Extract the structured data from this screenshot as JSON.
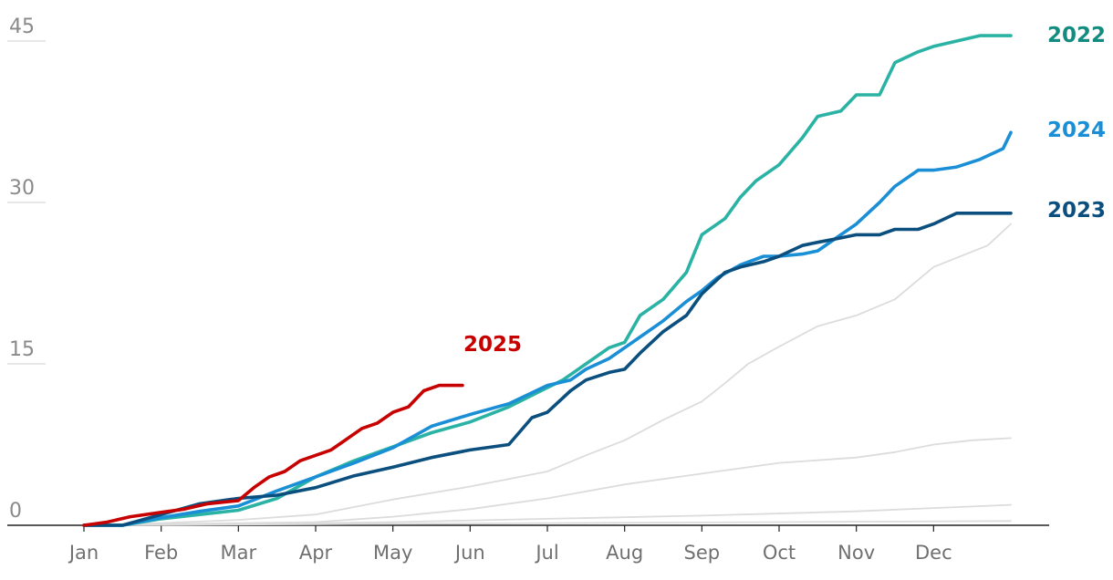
{
  "chart_data": {
    "type": "line",
    "title": "",
    "xlabel": "",
    "ylabel": "",
    "x_ticks": [
      "Jan",
      "Feb",
      "Mar",
      "Apr",
      "May",
      "Jun",
      "Jul",
      "Aug",
      "Sep",
      "Oct",
      "Nov",
      "Dec"
    ],
    "y_ticks": [
      0,
      15,
      30,
      45
    ],
    "xlim_months": [
      1,
      13
    ],
    "ylim": [
      0,
      46
    ],
    "grid": "horizontal",
    "legend": "direct labels at line ends",
    "colors": {
      "2022": "#2ab3a4",
      "2022_label": "#138b7e",
      "2023": "#0b4f7f",
      "2024": "#1a8fd6",
      "2025": "#c70000",
      "other_years": "#dcdcdc"
    },
    "series": [
      {
        "key": "o1",
        "highlight": false,
        "x": [
          1.0,
          2.0,
          3.0,
          4.0,
          5.0,
          5.5,
          6.0,
          7.0,
          7.5,
          8.0,
          8.5,
          9.0,
          9.3,
          9.6,
          10.0,
          10.5,
          11.0,
          11.5,
          12.0,
          12.7,
          13.0
        ],
        "y": [
          0,
          0.2,
          0.5,
          1.0,
          2.4,
          3.0,
          3.6,
          5.0,
          6.5,
          7.9,
          9.8,
          11.5,
          13.2,
          15.0,
          16.6,
          18.5,
          19.5,
          21.0,
          24.0,
          26.0,
          28.0
        ]
      },
      {
        "key": "o2",
        "highlight": false,
        "x": [
          1.0,
          2.0,
          3.0,
          4.0,
          5.0,
          6.0,
          7.0,
          8.0,
          9.0,
          10.0,
          11.0,
          11.5,
          12.0,
          12.5,
          13.0
        ],
        "y": [
          0,
          0.1,
          0.2,
          0.3,
          0.8,
          1.5,
          2.5,
          3.8,
          4.8,
          5.8,
          6.3,
          6.8,
          7.5,
          7.9,
          8.1
        ]
      },
      {
        "key": "o3",
        "highlight": false,
        "x": [
          1.0,
          3.0,
          5.0,
          7.0,
          9.0,
          11.0,
          12.0,
          13.0
        ],
        "y": [
          0,
          0.1,
          0.3,
          0.6,
          0.9,
          1.3,
          1.6,
          1.9
        ]
      },
      {
        "key": "o4",
        "highlight": false,
        "x": [
          1.0,
          4.0,
          7.0,
          10.0,
          13.0
        ],
        "y": [
          0,
          0.1,
          0.2,
          0.3,
          0.4
        ]
      },
      {
        "key": "s2022",
        "name": "2022",
        "highlight": true,
        "x": [
          1.0,
          1.5,
          2.0,
          2.5,
          3.0,
          3.5,
          4.0,
          4.5,
          5.0,
          5.5,
          6.0,
          6.5,
          7.0,
          7.2,
          7.5,
          7.8,
          8.0,
          8.2,
          8.5,
          8.8,
          9.0,
          9.3,
          9.5,
          9.7,
          10.0,
          10.3,
          10.5,
          10.8,
          11.0,
          11.3,
          11.5,
          11.8,
          12.0,
          12.3,
          12.6,
          12.9,
          13.0
        ],
        "y": [
          0,
          0,
          0.6,
          1.0,
          1.4,
          2.5,
          4.5,
          6.0,
          7.3,
          8.6,
          9.6,
          11.0,
          12.8,
          13.5,
          15.0,
          16.5,
          17.0,
          19.5,
          21.0,
          23.5,
          27.0,
          28.5,
          30.5,
          32.0,
          33.5,
          36.0,
          38.0,
          38.5,
          40.0,
          40.0,
          43.0,
          44.0,
          44.5,
          45.0,
          45.5,
          45.5,
          45.5
        ]
      },
      {
        "key": "s2024",
        "name": "2024",
        "highlight": true,
        "x": [
          1.0,
          1.5,
          2.0,
          2.5,
          3.0,
          3.5,
          4.0,
          4.5,
          5.0,
          5.5,
          6.0,
          6.5,
          7.0,
          7.3,
          7.5,
          7.8,
          8.0,
          8.3,
          8.5,
          8.8,
          9.0,
          9.2,
          9.5,
          9.8,
          10.0,
          10.3,
          10.5,
          10.8,
          11.0,
          11.3,
          11.5,
          11.8,
          12.0,
          12.3,
          12.6,
          12.9,
          13.0
        ],
        "y": [
          0,
          0,
          0.7,
          1.3,
          1.8,
          3.2,
          4.5,
          5.8,
          7.2,
          9.2,
          10.3,
          11.3,
          13.0,
          13.5,
          14.5,
          15.5,
          16.5,
          18.0,
          19.0,
          20.8,
          21.8,
          23.0,
          24.2,
          25.0,
          25.0,
          25.2,
          25.5,
          27.0,
          28.0,
          30.0,
          31.5,
          33.0,
          33.0,
          33.3,
          34.0,
          35.0,
          36.5
        ]
      },
      {
        "key": "s2023",
        "name": "2023",
        "highlight": true,
        "x": [
          1.0,
          1.5,
          2.0,
          2.5,
          3.0,
          3.5,
          4.0,
          4.5,
          5.0,
          5.5,
          6.0,
          6.3,
          6.5,
          6.8,
          7.0,
          7.3,
          7.5,
          7.8,
          8.0,
          8.2,
          8.5,
          8.8,
          9.0,
          9.3,
          9.5,
          9.8,
          10.0,
          10.3,
          10.5,
          10.8,
          11.0,
          11.3,
          11.5,
          11.8,
          12.0,
          12.3,
          12.6,
          13.0
        ],
        "y": [
          0,
          0,
          1.0,
          2.0,
          2.5,
          2.8,
          3.5,
          4.6,
          5.4,
          6.3,
          7.0,
          7.3,
          7.5,
          10.0,
          10.5,
          12.5,
          13.5,
          14.2,
          14.5,
          16.0,
          18.0,
          19.5,
          21.5,
          23.5,
          24.0,
          24.5,
          25.0,
          26.0,
          26.3,
          26.7,
          27.0,
          27.0,
          27.5,
          27.5,
          28.0,
          29.0,
          29.0,
          29.0
        ]
      },
      {
        "key": "s2025",
        "name": "2025",
        "highlight": true,
        "x": [
          1.0,
          1.3,
          1.6,
          2.0,
          2.3,
          2.6,
          3.0,
          3.2,
          3.4,
          3.6,
          3.8,
          4.0,
          4.2,
          4.4,
          4.6,
          4.8,
          5.0,
          5.2,
          5.4,
          5.6,
          5.9
        ],
        "y": [
          0,
          0.3,
          0.8,
          1.2,
          1.5,
          2.0,
          2.3,
          3.5,
          4.5,
          5.0,
          6.0,
          6.5,
          7.0,
          8.0,
          9.0,
          9.5,
          10.5,
          11.0,
          12.5,
          13.0,
          13.0
        ]
      }
    ]
  }
}
